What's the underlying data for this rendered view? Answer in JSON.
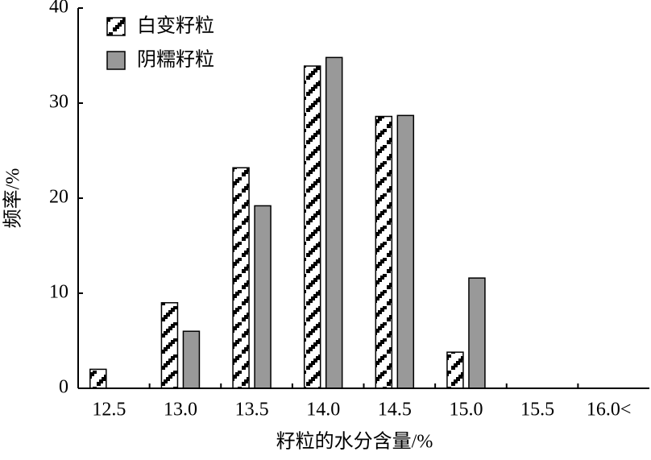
{
  "chart_data": {
    "type": "bar",
    "xlabel": "籽粒的水分含量/%",
    "ylabel": "频率/%",
    "categories": [
      "12.5",
      "13.0",
      "13.5",
      "14.0",
      "14.5",
      "15.0",
      "15.5",
      "16.0<"
    ],
    "series": [
      {
        "name": "白变籽粒",
        "color": "#000000",
        "hatch": true,
        "values": [
          2,
          9,
          23.2,
          33.9,
          28.6,
          3.8,
          0,
          0
        ]
      },
      {
        "name": "阴糯籽粒",
        "color": "#999999",
        "hatch": false,
        "values": [
          0,
          6,
          19.2,
          34.8,
          28.7,
          11.6,
          0,
          0
        ]
      }
    ],
    "ylim": [
      0,
      40
    ],
    "yticks": [
      0,
      10,
      20,
      30,
      40
    ],
    "grid": false,
    "legend": "upper left"
  }
}
